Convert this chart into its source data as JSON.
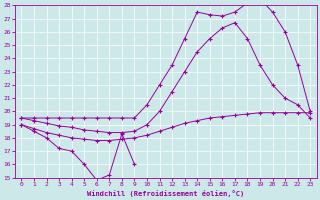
{
  "bg_color": "#cce8e8",
  "grid_color": "#aacccc",
  "line_color": "#990099",
  "xlim": [
    -0.5,
    23.5
  ],
  "ylim": [
    15,
    28
  ],
  "xticks": [
    0,
    1,
    2,
    3,
    4,
    5,
    6,
    7,
    8,
    9,
    10,
    11,
    12,
    13,
    14,
    15,
    16,
    17,
    18,
    19,
    20,
    21,
    22,
    23
  ],
  "yticks": [
    15,
    16,
    17,
    18,
    19,
    20,
    21,
    22,
    23,
    24,
    25,
    26,
    27,
    28
  ],
  "xlabel": "Windchill (Refroidissement éolien,°C)",
  "line1_x": [
    0,
    1,
    2,
    3,
    4,
    5,
    6,
    7,
    8,
    9
  ],
  "line1_y": [
    19.0,
    18.5,
    18.0,
    17.2,
    17.0,
    16.0,
    14.8,
    15.2,
    18.3,
    16.0
  ],
  "line2_x": [
    0,
    1,
    2,
    3,
    4,
    5,
    6,
    7,
    8,
    9,
    10,
    11,
    12,
    13,
    14,
    15,
    16,
    17,
    18,
    19,
    20,
    21,
    22,
    23
  ],
  "line2_y": [
    19.0,
    18.7,
    18.4,
    18.2,
    18.0,
    17.9,
    17.8,
    17.8,
    17.9,
    18.0,
    18.2,
    18.5,
    18.8,
    19.1,
    19.3,
    19.5,
    19.6,
    19.7,
    19.8,
    19.9,
    19.9,
    19.9,
    19.9,
    19.9
  ],
  "line3_x": [
    0,
    1,
    2,
    3,
    4,
    5,
    6,
    7,
    8,
    9,
    10,
    11,
    12,
    13,
    14,
    15,
    16,
    17,
    18,
    19,
    20,
    21,
    22,
    23
  ],
  "line3_y": [
    19.5,
    19.3,
    19.1,
    18.9,
    18.8,
    18.6,
    18.5,
    18.4,
    18.4,
    18.5,
    19.0,
    20.0,
    21.5,
    23.0,
    24.5,
    25.5,
    26.3,
    26.7,
    25.5,
    23.5,
    22.0,
    21.0,
    20.5,
    19.5
  ],
  "line4_x": [
    0,
    1,
    2,
    3,
    4,
    5,
    6,
    7,
    8,
    9,
    10,
    11,
    12,
    13,
    14,
    15,
    16,
    17,
    18,
    19,
    20,
    21,
    22,
    23
  ],
  "line4_y": [
    19.5,
    19.5,
    19.5,
    19.5,
    19.5,
    19.5,
    19.5,
    19.5,
    19.5,
    19.5,
    20.5,
    22.0,
    23.5,
    25.5,
    27.5,
    27.3,
    27.2,
    27.5,
    28.2,
    28.5,
    27.5,
    26.0,
    23.5,
    20.0
  ]
}
